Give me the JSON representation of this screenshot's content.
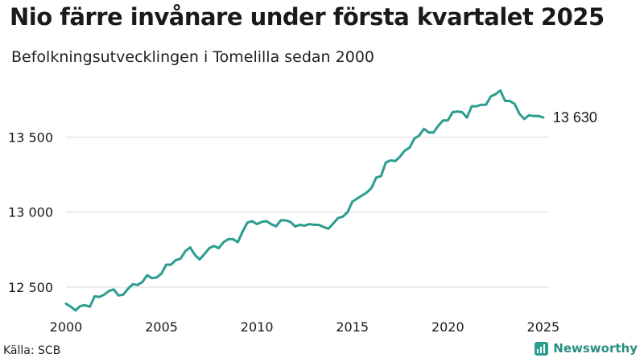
{
  "title": "Nio färre invånare under första kvartalet 2025",
  "subtitle": "Befolkningsutvecklingen i Tomelilla sedan 2000",
  "source": "Källa: SCB",
  "brand": "Newsworthy",
  "end_label": "13 630",
  "colors": {
    "line": "#2a9d8f",
    "grid": "#d9d9d9",
    "text": "#1a1a1a",
    "brand": "#2a8f83"
  },
  "chart_data": {
    "type": "line",
    "title": "Nio färre invånare under första kvartalet 2025",
    "subtitle": "Befolkningsutvecklingen i Tomelilla sedan 2000",
    "xlabel": "",
    "ylabel": "",
    "ylim": [
      12350,
      13850
    ],
    "xlim": [
      2000,
      2025.3
    ],
    "x_ticks": [
      2000,
      2005,
      2010,
      2015,
      2020,
      2025
    ],
    "x_tick_labels": [
      "2000",
      "2005",
      "2010",
      "2015",
      "2020",
      "2025"
    ],
    "y_ticks": [
      12500,
      13000,
      13500
    ],
    "y_tick_labels": [
      "12 500",
      "13 000",
      "13 500"
    ],
    "grid": "horizontal",
    "series": [
      {
        "x": [
          2000.0,
          2000.25,
          2000.5,
          2000.75,
          2001.0,
          2001.25,
          2001.5,
          2001.75,
          2002.0,
          2002.25,
          2002.5,
          2002.75,
          2003.0,
          2003.25,
          2003.5,
          2003.75,
          2004.0,
          2004.25,
          2004.5,
          2004.75,
          2005.0,
          2005.25,
          2005.5,
          2005.75,
          2006.0,
          2006.25,
          2006.5,
          2006.75,
          2007.0,
          2007.25,
          2007.5,
          2007.75,
          2008.0,
          2008.25,
          2008.5,
          2008.75,
          2009.0,
          2009.25,
          2009.5,
          2009.75,
          2010.0,
          2010.25,
          2010.5,
          2010.75,
          2011.0,
          2011.25,
          2011.5,
          2011.75,
          2012.0,
          2012.25,
          2012.5,
          2012.75,
          2013.0,
          2013.25,
          2013.5,
          2013.75,
          2014.0,
          2014.25,
          2014.5,
          2014.75,
          2015.0,
          2015.25,
          2015.5,
          2015.75,
          2016.0,
          2016.25,
          2016.5,
          2016.75,
          2017.0,
          2017.25,
          2017.5,
          2017.75,
          2018.0,
          2018.25,
          2018.5,
          2018.75,
          2019.0,
          2019.25,
          2019.5,
          2019.75,
          2020.0,
          2020.25,
          2020.5,
          2020.75,
          2021.0,
          2021.25,
          2021.5,
          2021.75,
          2022.0,
          2022.25,
          2022.5,
          2022.75,
          2023.0,
          2023.25,
          2023.5,
          2023.75,
          2024.0,
          2024.25,
          2024.5,
          2024.75,
          2025.0
        ],
        "values": [
          12390,
          12370,
          12345,
          12375,
          12380,
          12370,
          12440,
          12435,
          12450,
          12475,
          12485,
          12445,
          12450,
          12490,
          12520,
          12515,
          12535,
          12580,
          12560,
          12565,
          12590,
          12650,
          12650,
          12680,
          12690,
          12740,
          12765,
          12715,
          12685,
          12720,
          12760,
          12775,
          12760,
          12800,
          12820,
          12820,
          12800,
          12870,
          12930,
          12940,
          12920,
          12935,
          12940,
          12920,
          12905,
          12945,
          12945,
          12935,
          12905,
          12915,
          12910,
          12920,
          12915,
          12915,
          12900,
          12890,
          12925,
          12960,
          12970,
          13000,
          13070,
          13090,
          13110,
          13130,
          13160,
          13230,
          13240,
          13330,
          13345,
          13340,
          13370,
          13410,
          13430,
          13490,
          13510,
          13555,
          13530,
          13530,
          13575,
          13610,
          13610,
          13665,
          13670,
          13665,
          13630,
          13705,
          13705,
          13715,
          13715,
          13770,
          13785,
          13810,
          13740,
          13740,
          13720,
          13655,
          13620,
          13645,
          13640,
          13640,
          13630
        ]
      }
    ]
  }
}
